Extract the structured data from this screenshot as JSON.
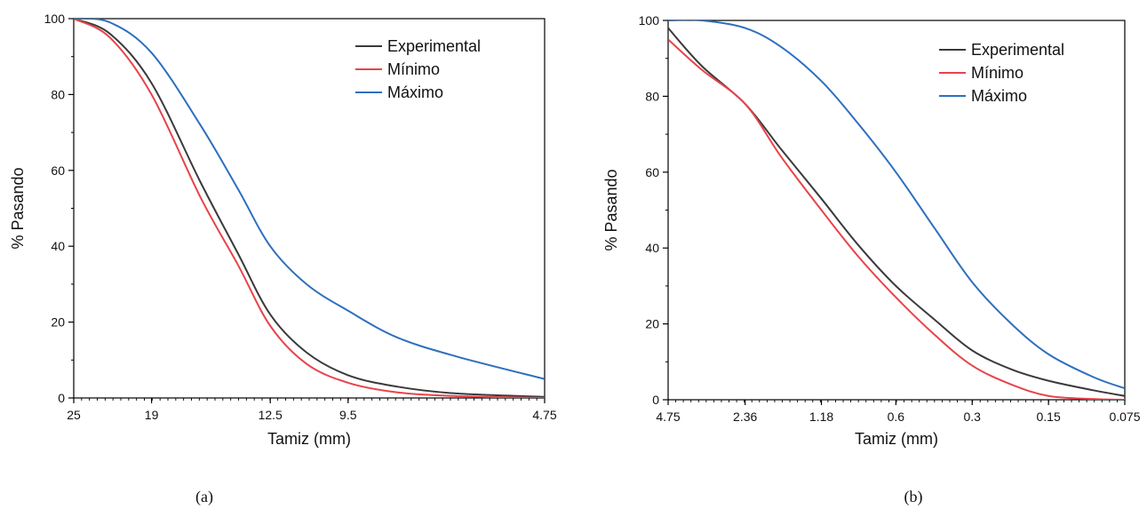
{
  "chart_data": [
    {
      "type": "line",
      "caption": "(a)",
      "xlabel": "Tamiz (mm)",
      "ylabel": "% Pasando",
      "ylim": [
        0,
        100
      ],
      "x_scale": "log",
      "x_reversed": true,
      "xlim": [
        25,
        4.75
      ],
      "x_ticks": [
        25,
        19,
        12.5,
        9.5,
        4.75
      ],
      "x_tick_labels": [
        "25",
        "19",
        "12.5",
        "9.5",
        "4.75"
      ],
      "y_ticks": [
        0,
        20,
        40,
        60,
        80,
        100
      ],
      "y_tick_labels": [
        "0",
        "20",
        "40",
        "60",
        "80",
        "100"
      ],
      "grid": false,
      "legend_position": "top-right",
      "series": [
        {
          "name": "Experimental",
          "color": "#3a3a3a",
          "x": [
            25,
            22,
            19,
            16,
            14,
            12.5,
            11,
            9.5,
            8,
            6.5,
            4.75
          ],
          "y": [
            100,
            96,
            83,
            57,
            38,
            22,
            12,
            6,
            3,
            1.2,
            0.3
          ]
        },
        {
          "name": "Mínimo",
          "color": "#e8434a",
          "x": [
            25,
            22,
            19,
            16,
            14,
            12.5,
            11,
            9.5,
            8,
            6.5,
            4.75
          ],
          "y": [
            100,
            95,
            80,
            53,
            35,
            19,
            9,
            4,
            1.5,
            0.5,
            0
          ]
        },
        {
          "name": "Máximo",
          "color": "#2e6fbf",
          "x": [
            25,
            22,
            19,
            16,
            14,
            12.5,
            11,
            9.5,
            8,
            6.5,
            4.75
          ],
          "y": [
            100,
            99,
            91,
            72,
            55,
            40,
            30,
            23,
            16,
            11,
            5
          ]
        }
      ]
    },
    {
      "type": "line",
      "caption": "(b)",
      "xlabel": "Tamiz (mm)",
      "ylabel": "% Pasando",
      "ylim": [
        0,
        100
      ],
      "x_scale": "log",
      "x_reversed": true,
      "xlim": [
        4.75,
        0.075
      ],
      "x_ticks": [
        4.75,
        2.36,
        1.18,
        0.6,
        0.3,
        0.15,
        0.075
      ],
      "x_tick_labels": [
        "4.75",
        "2.36",
        "1.18",
        "0.6",
        "0.3",
        "0.15",
        "0.075"
      ],
      "y_ticks": [
        0,
        20,
        40,
        60,
        80,
        100
      ],
      "y_tick_labels": [
        "0",
        "20",
        "40",
        "60",
        "80",
        "100"
      ],
      "grid": false,
      "legend_position": "top-right",
      "series": [
        {
          "name": "Experimental",
          "color": "#3a3a3a",
          "x": [
            4.75,
            3.5,
            2.36,
            1.7,
            1.18,
            0.85,
            0.6,
            0.42,
            0.3,
            0.21,
            0.15,
            0.1,
            0.075
          ],
          "y": [
            98,
            88,
            78,
            66,
            53,
            41,
            30,
            21,
            13,
            8,
            5,
            2.5,
            1
          ]
        },
        {
          "name": "Mínimo",
          "color": "#e8434a",
          "x": [
            4.75,
            3.5,
            2.36,
            1.7,
            1.18,
            0.85,
            0.6,
            0.42,
            0.3,
            0.21,
            0.15,
            0.1,
            0.075
          ],
          "y": [
            95,
            87,
            78,
            64,
            50,
            38,
            27,
            17,
            9,
            4,
            1,
            0.2,
            0
          ]
        },
        {
          "name": "Máximo",
          "color": "#2e6fbf",
          "x": [
            4.75,
            3.5,
            2.36,
            1.7,
            1.18,
            0.85,
            0.6,
            0.42,
            0.3,
            0.21,
            0.15,
            0.1,
            0.075
          ],
          "y": [
            100,
            100,
            98,
            93,
            84,
            73,
            60,
            45,
            31,
            20,
            12,
            6,
            3
          ]
        }
      ]
    }
  ]
}
